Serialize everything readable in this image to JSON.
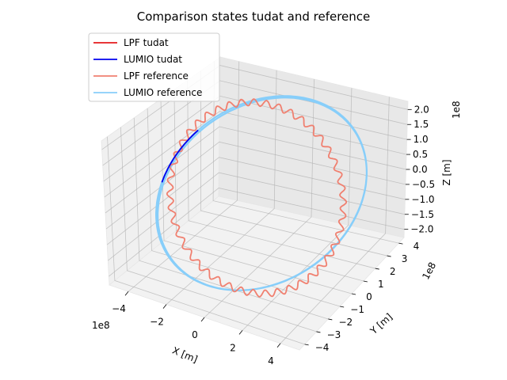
{
  "chart_data": {
    "type": "line3d",
    "title": "Comparison states tudat and reference",
    "xlabel": "X [m]",
    "ylabel": "Y [m]",
    "zlabel": "Z [m]",
    "x_scale_label": "1e8",
    "y_scale_label": "1e8",
    "z_scale_label": "1e8",
    "x_ticks": [
      "−4",
      "−2",
      "0",
      "2",
      "4"
    ],
    "y_ticks": [
      "−4",
      "−3",
      "−2",
      "−1",
      "0",
      "1",
      "2",
      "3",
      "4"
    ],
    "z_ticks": [
      "−2.0",
      "−1.5",
      "−1.0",
      "−0.5",
      "0.0",
      "0.5",
      "1.0",
      "1.5",
      "2.0"
    ],
    "legend": [
      {
        "name": "LPF tudat",
        "color": "#e41a1c"
      },
      {
        "name": "LUMIO tudat",
        "color": "#0000ee"
      },
      {
        "name": "LPF reference",
        "color": "#f08070"
      },
      {
        "name": "LUMIO reference",
        "color": "#87cefa"
      }
    ],
    "legend_placement": "top-left",
    "grid": true,
    "series": [
      {
        "name": "LUMIO tudat",
        "color": "#0000ee",
        "description_values": {
          "arc_start_deg": 128,
          "arc_end_deg": 90
        }
      },
      {
        "name": "LUMIO reference",
        "color": "#87cefa"
      },
      {
        "name": "LPF reference",
        "color": "#f08070"
      },
      {
        "name": "LPF tudat",
        "color": "#e41a1c"
      }
    ]
  }
}
